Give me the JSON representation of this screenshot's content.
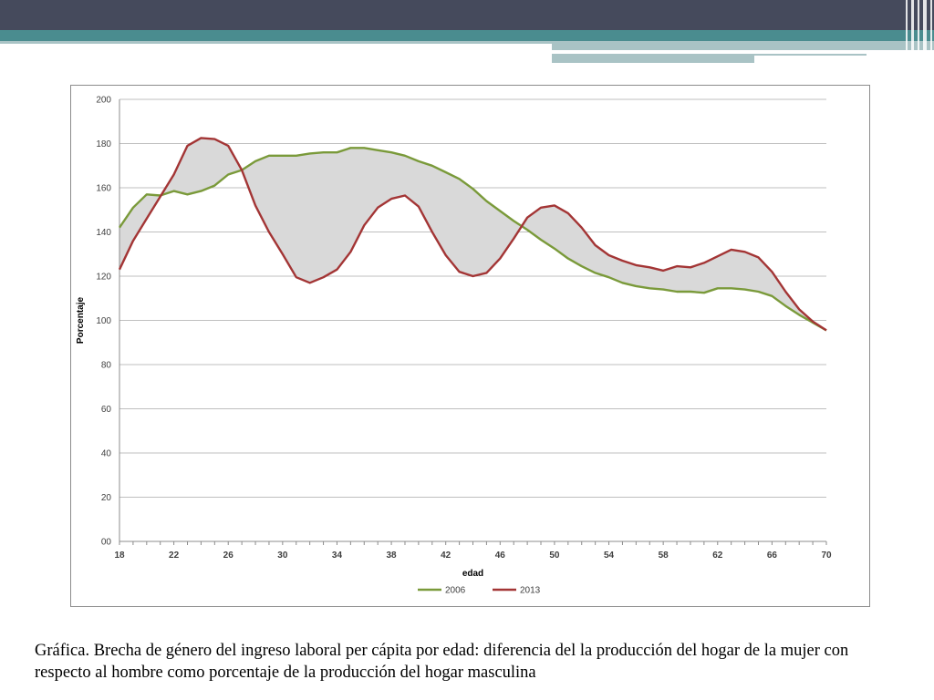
{
  "colors": {
    "header_dark": "#454a5c",
    "header_teal": "#4a8c8f",
    "header_light": "#a9c3c5",
    "series_2006": "#7a9a3a",
    "series_2013": "#a33535",
    "gap_fill": "#d9d9d9",
    "grid": "#bfbfbf"
  },
  "caption": "Gráfica. Brecha de género del ingreso laboral per cápita por edad: diferencia del la producción del hogar de la mujer con respecto al hombre como porcentaje de la producción del hogar masculina",
  "chart_data": {
    "type": "line",
    "title": "",
    "xlabel": "edad",
    "ylabel": "Porcentaje",
    "xlim": [
      18,
      70
    ],
    "ylim": [
      0,
      200
    ],
    "grid": true,
    "legend_position": "bottom",
    "fill_between_series": true,
    "x_ticks": [
      "18",
      "22",
      "26",
      "30",
      "34",
      "38",
      "42",
      "46",
      "50",
      "54",
      "58",
      "62",
      "66",
      "70"
    ],
    "y_ticks": [
      "00",
      "20",
      "40",
      "60",
      "80",
      "100",
      "120",
      "140",
      "160",
      "180",
      "200"
    ],
    "x": [
      18,
      19,
      20,
      21,
      22,
      23,
      24,
      25,
      26,
      27,
      28,
      29,
      30,
      31,
      32,
      33,
      34,
      35,
      36,
      37,
      38,
      39,
      40,
      41,
      42,
      43,
      44,
      45,
      46,
      47,
      48,
      49,
      50,
      51,
      52,
      53,
      54,
      55,
      56,
      57,
      58,
      59,
      60,
      61,
      62,
      63,
      64,
      65,
      66,
      67,
      68,
      69,
      70
    ],
    "series": [
      {
        "name": "2006",
        "color": "#7a9a3a",
        "values": [
          142,
          151,
          157,
          156.5,
          158.5,
          157,
          158.5,
          161,
          166,
          168,
          172,
          174.5,
          174.5,
          174.5,
          175.5,
          176,
          176,
          178,
          178,
          177,
          176,
          174.5,
          172,
          170,
          167,
          164,
          159.5,
          154,
          149.5,
          145,
          141,
          136.5,
          132.5,
          128,
          124.5,
          121.5,
          119.5,
          117,
          115.5,
          114.5,
          114,
          113,
          113,
          112.5,
          114.5,
          114.5,
          114,
          113,
          111,
          106.5,
          102.5,
          99,
          95.5
        ]
      },
      {
        "name": "2013",
        "color": "#a33535",
        "values": [
          123,
          136,
          146,
          156,
          166,
          179,
          182.5,
          182,
          179,
          168,
          152,
          140,
          130,
          119.5,
          117,
          119.5,
          123,
          131,
          143,
          151,
          155,
          156.5,
          151.5,
          140,
          129.5,
          122,
          120,
          121.5,
          128,
          137,
          146.5,
          151,
          152,
          148.5,
          142,
          134,
          129.5,
          127,
          125,
          124,
          122.5,
          124.5,
          124,
          126,
          129,
          132,
          131,
          128.5,
          122,
          113,
          105,
          99.5,
          95.5
        ]
      }
    ]
  }
}
